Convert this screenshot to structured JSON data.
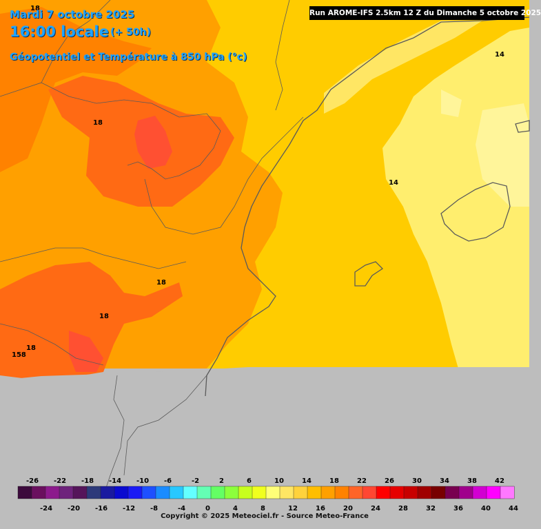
{
  "header": {
    "date": "Mardi 7 octobre 2025",
    "hour": "16:00 locale",
    "lead": "(+ 50h)",
    "parameter": "Géopotentiel et Température à 850 hPa (°c)",
    "run": "Run AROME-IFS 2.5km 12 Z du Dimanche 5 octobre 2025"
  },
  "isolines": [
    {
      "text": "18"
    },
    {
      "text": "18"
    },
    {
      "text": "18"
    },
    {
      "text": "18"
    },
    {
      "text": "18"
    },
    {
      "text": "158"
    },
    {
      "text": "14"
    },
    {
      "text": "14"
    }
  ],
  "legend": {
    "top_labels": [
      "-26",
      "-22",
      "-18",
      "-14",
      "-10",
      "-6",
      "-2",
      "2",
      "6",
      "10",
      "14",
      "18",
      "22",
      "26",
      "30",
      "34",
      "38",
      "42"
    ],
    "bottom_labels": [
      "-24",
      "-20",
      "-16",
      "-12",
      "-8",
      "-4",
      "0",
      "4",
      "8",
      "12",
      "16",
      "20",
      "24",
      "28",
      "32",
      "36",
      "40",
      "44"
    ],
    "colors": [
      "#3c0a3c",
      "#6a0f5e",
      "#8c1a8c",
      "#6e237c",
      "#55155a",
      "#2d3a7a",
      "#1a1aa0",
      "#0a0ad0",
      "#1a1af5",
      "#1e50ff",
      "#1a8cff",
      "#28c8ff",
      "#64ffff",
      "#64ffb4",
      "#64ff64",
      "#8cff3c",
      "#c8ff1e",
      "#f0ff1e",
      "#ffff78",
      "#ffe664",
      "#ffd23c",
      "#ffbe00",
      "#ffa000",
      "#ff8200",
      "#ff6428",
      "#ff4632",
      "#ff0000",
      "#e60000",
      "#c80000",
      "#a00000",
      "#780000",
      "#780050",
      "#a0008c",
      "#d200d2",
      "#ff00ff",
      "#ff78ff"
    ]
  },
  "copyright": "Copyright © 2025 Meteociel.fr - Source Meteo-France"
}
